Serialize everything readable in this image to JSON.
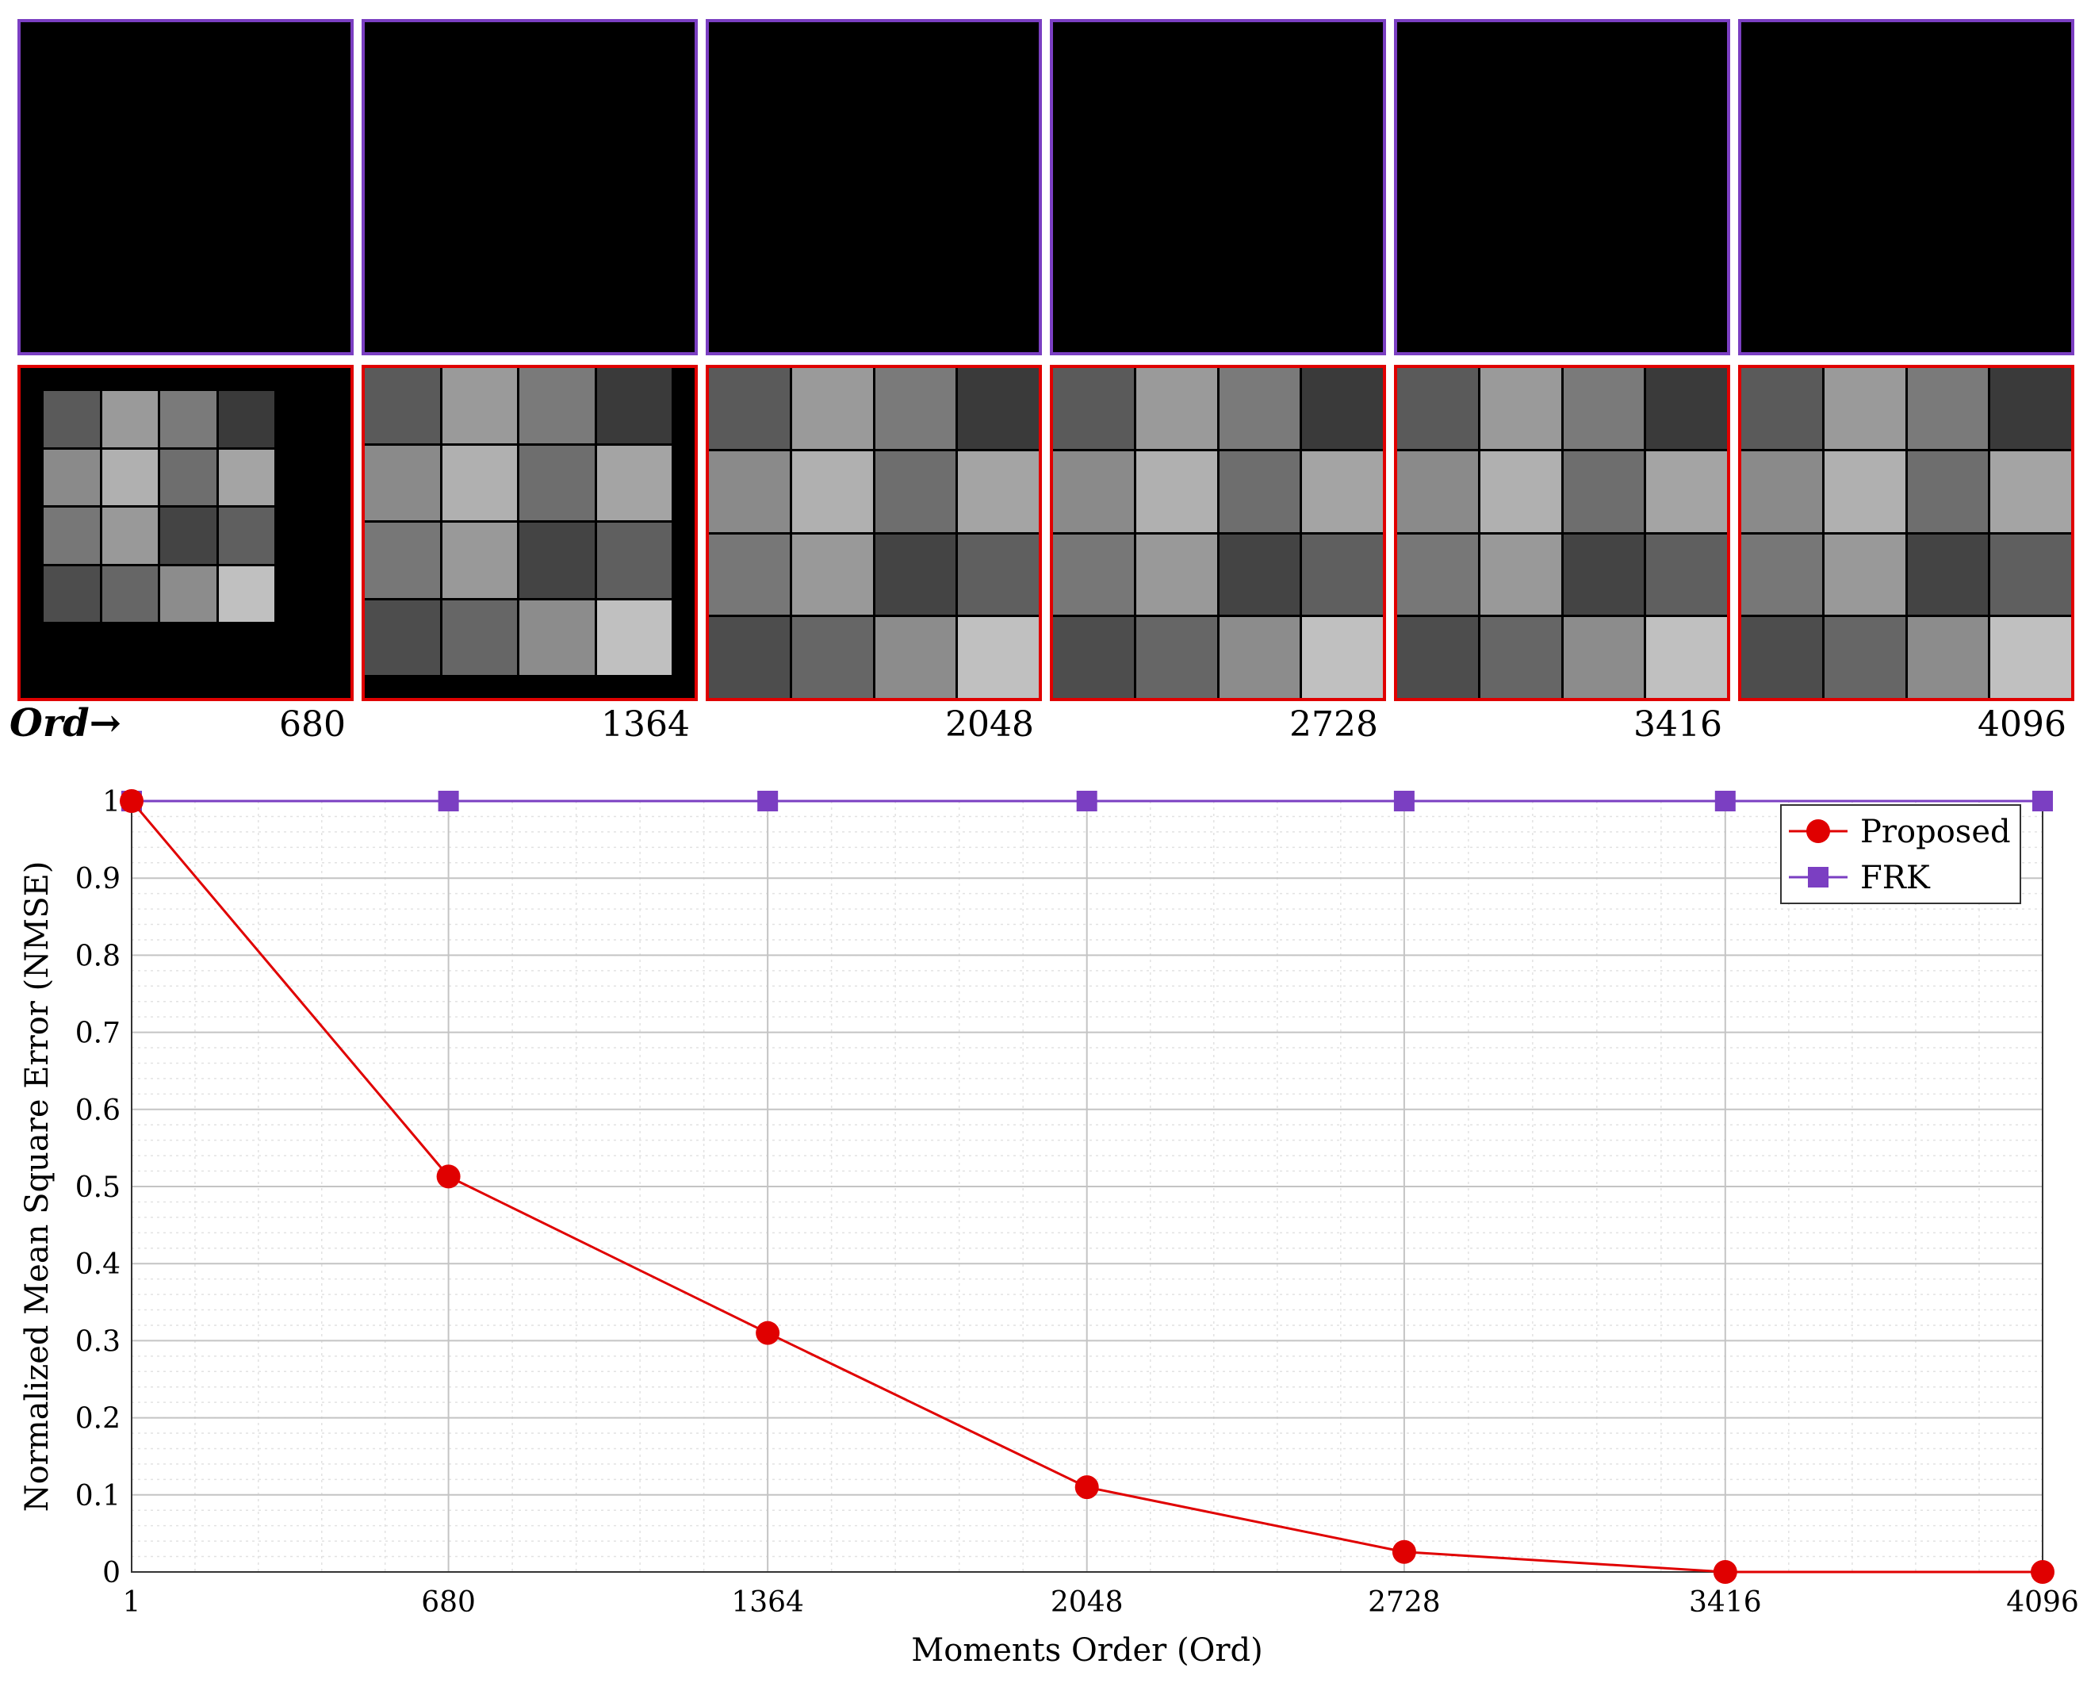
{
  "top_row": {
    "ord_prefix": "Ord→",
    "order_labels": [
      "680",
      "1364",
      "2048",
      "2728",
      "3416",
      "4096"
    ],
    "top_tile_color": "#000000",
    "top_border_color": "#7b3fc2",
    "bottom_border_color": "#e00000",
    "reconstruction_fill_fraction": [
      0.7,
      0.93,
      1.0,
      1.0,
      1.0,
      1.0
    ]
  },
  "chart_data": {
    "type": "line",
    "x": [
      1,
      680,
      1364,
      2048,
      2728,
      3416,
      4096
    ],
    "xlabel": "Moments Order (Ord)",
    "ylabel": "Normalized Mean Square Error (NMSE)",
    "xticks": [
      "1",
      "680",
      "1364",
      "2048",
      "2728",
      "3416",
      "4096"
    ],
    "yticks": [
      "0",
      "0.1",
      "0.2",
      "0.3",
      "0.4",
      "0.5",
      "0.6",
      "0.7",
      "0.8",
      "0.9",
      "1"
    ],
    "xlim": [
      1,
      4096
    ],
    "ylim": [
      0,
      1
    ],
    "grid": true,
    "minor_grid": true,
    "legend_position": "top-right",
    "series": [
      {
        "name": "Proposed",
        "color": "#e00000",
        "marker": "circle",
        "values": [
          1.0,
          0.513,
          0.31,
          0.11,
          0.026,
          0.0,
          0.0
        ]
      },
      {
        "name": "FRK",
        "color": "#7b3fc2",
        "marker": "square",
        "values": [
          1.0,
          1.0,
          1.0,
          1.0,
          1.0,
          1.0,
          1.0
        ]
      }
    ]
  }
}
